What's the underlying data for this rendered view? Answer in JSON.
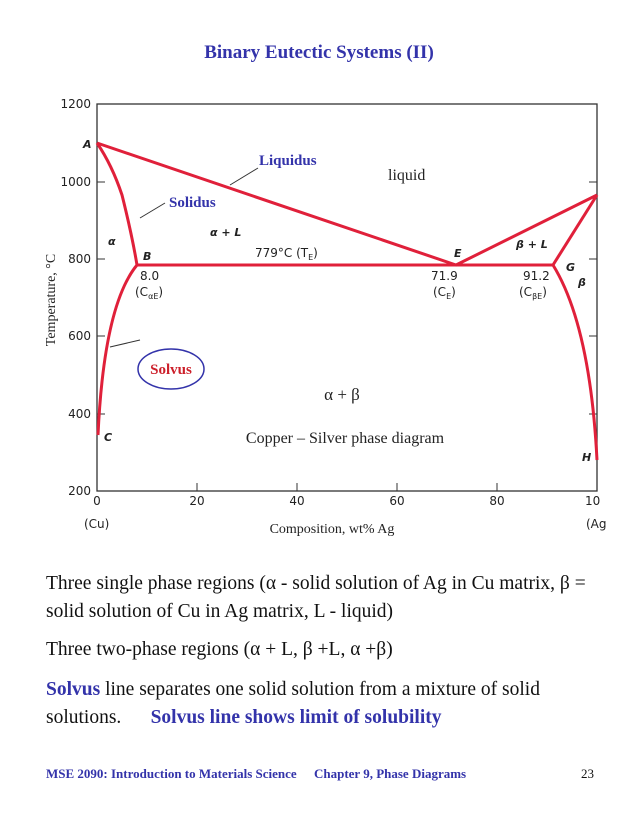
{
  "header": {
    "title": "Binary Eutectic Systems (II)"
  },
  "diagram": {
    "y_label": "Temperature, °C",
    "x_label": "Composition, wt% Ag",
    "yticks": [
      "200",
      "400",
      "600",
      "800",
      "1000",
      "1200"
    ],
    "xticks": [
      "0",
      "20",
      "40",
      "60",
      "80",
      "10"
    ],
    "x_ends": [
      "(Cu)",
      "(Ag"
    ],
    "points": [
      "A",
      "B",
      "C",
      "E",
      "G",
      "H"
    ],
    "phases": [
      "α",
      "β",
      "α + L",
      "β + L"
    ],
    "eutectic": "779°C (T",
    "eutectic_sub": "E",
    "compositions": [
      {
        "value": "8.0",
        "label": "(C",
        "sub": "αE"
      },
      {
        "value": "71.9",
        "label": "(C",
        "sub": "E"
      },
      {
        "value": "91.2",
        "label": "(C",
        "sub": "βE"
      }
    ],
    "annotations": {
      "liquidus": "Liquidus",
      "solidus": "Solidus",
      "liquid": "liquid",
      "solvus": "Solvus",
      "two_phase": "α + β",
      "caption": "Copper – Silver phase diagram"
    }
  },
  "body": {
    "p1": "Three single phase regions (α - solid solution of Ag in Cu matrix,  β = solid solution of Cu in Ag matrix, L - liquid)",
    "p2": "Three two-phase regions (α + L, β +L, α +β)",
    "p3_term": "Solvus",
    "p3": " line separates one solid solution from a mixture of solid solutions.",
    "p3_emph": "Solvus line shows limit of solubility"
  },
  "footer": {
    "course": "MSE 2090: Introduction to Materials Science",
    "chapter": "Chapter 9, Phase Diagrams",
    "page": "23"
  }
}
